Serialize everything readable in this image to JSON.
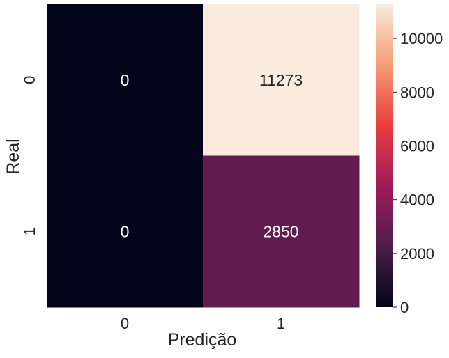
{
  "chart_data": {
    "type": "heatmap",
    "title": "",
    "xlabel": "Predição",
    "ylabel": "Real",
    "x_categories": [
      "0",
      "1"
    ],
    "y_categories": [
      "0",
      "1"
    ],
    "values": [
      [
        0,
        11273
      ],
      [
        0,
        2850
      ]
    ],
    "annotations": [
      [
        "0",
        "11273"
      ],
      [
        "0",
        "2850"
      ]
    ],
    "colorbar": {
      "range": [
        0,
        11273
      ],
      "ticks": [
        0,
        2000,
        4000,
        6000,
        8000,
        10000
      ],
      "tick_labels": [
        "0",
        "2000",
        "4000",
        "6000",
        "8000",
        "10000"
      ],
      "colormap": "rocket",
      "colors": [
        "#03051a",
        "#4c1d4b",
        "#a11a5b",
        "#e83f3f",
        "#f69c73",
        "#faebdd"
      ]
    },
    "grid": false,
    "legend": "colorbar-right"
  }
}
